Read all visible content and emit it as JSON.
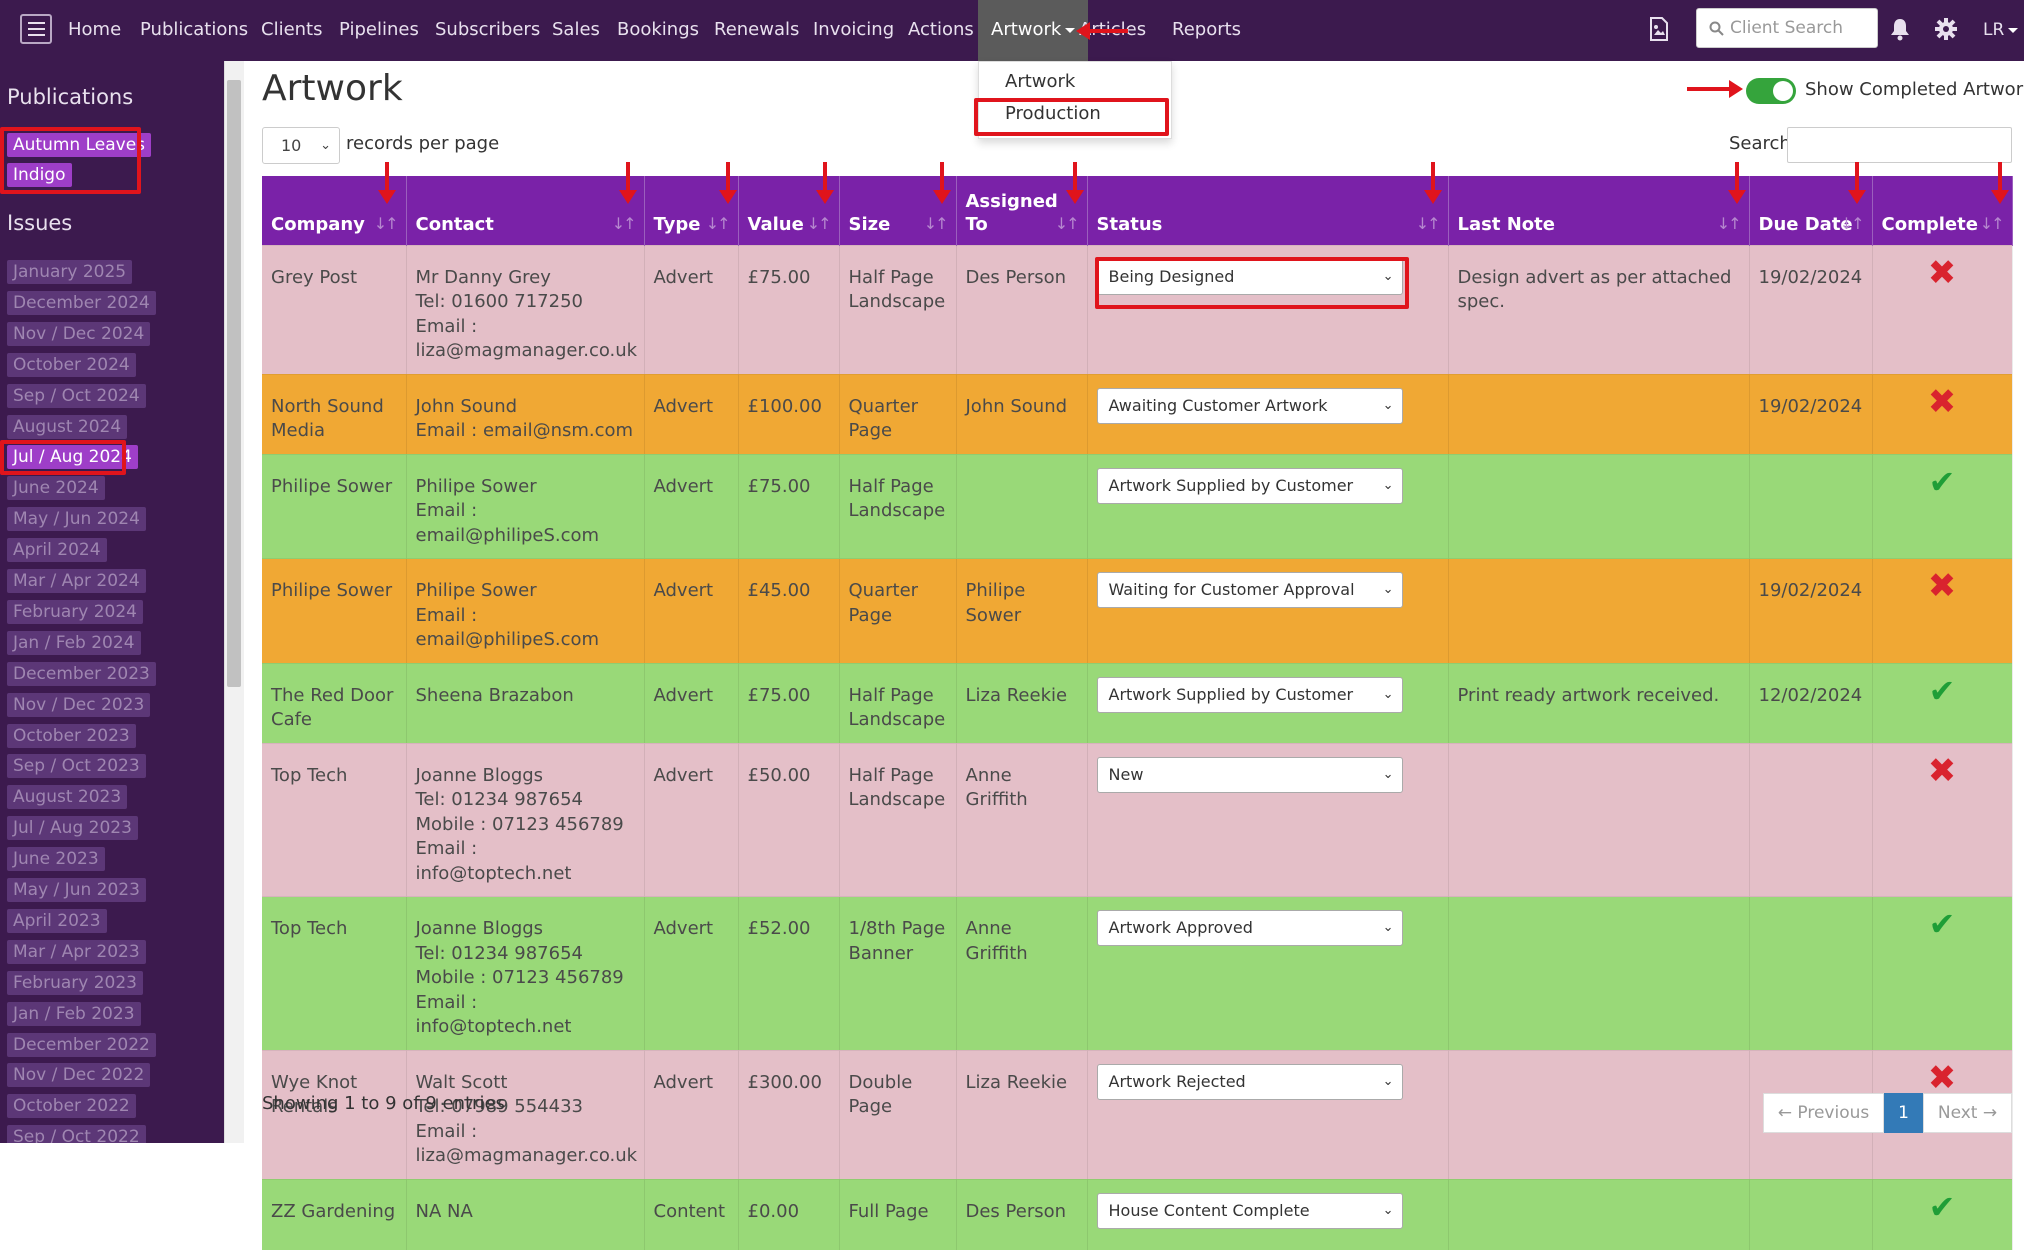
{
  "nav": {
    "items": [
      "Home",
      "Publications",
      "Clients",
      "Pipelines",
      "Subscribers",
      "Sales",
      "Bookings",
      "Renewals",
      "Invoicing",
      "Actions"
    ],
    "active_item": "Artwork",
    "after_items": [
      "Articles",
      "Reports"
    ],
    "search_placeholder": "Client Search",
    "user": "LR",
    "icons": [
      "menu-icon",
      "image-report-icon",
      "search-icon",
      "bell-icon",
      "gear-icon"
    ]
  },
  "dropdown": {
    "items": [
      "Artwork",
      "Production"
    ]
  },
  "sidebar": {
    "publications_heading": "Publications",
    "publications": [
      "Autumn Leaves",
      "Indigo"
    ],
    "issues_heading": "Issues",
    "issues": [
      "January 2025",
      "December 2024",
      "Nov / Dec 2024",
      "October 2024",
      "Sep / Oct 2024",
      "August 2024",
      "Jul / Aug 2024",
      "June 2024",
      "May / Jun 2024",
      "April 2024",
      "Mar / Apr 2024",
      "February 2024",
      "Jan / Feb 2024",
      "December 2023",
      "Nov / Dec 2023",
      "October 2023",
      "Sep / Oct 2023",
      "August 2023",
      "Jul / Aug 2023",
      "June 2023",
      "May / Jun 2023",
      "April 2023",
      "Mar / Apr 2023",
      "February 2023",
      "Jan / Feb 2023",
      "December 2022",
      "Nov / Dec 2022",
      "October 2022",
      "Sep / Oct 2022"
    ],
    "selected_issue": "Jul / Aug 2024"
  },
  "main": {
    "title": "Artwork",
    "toggle_label": "Show Completed Artwork",
    "toggle_on": true,
    "page_length": "10",
    "page_length_label": "records per page",
    "search_label": "Search:",
    "search_value": "",
    "columns": [
      "Company",
      "Contact",
      "Type",
      "Value",
      "Size",
      "Assigned To",
      "Status",
      "Last Note",
      "Due Date",
      "Complete"
    ],
    "rows": [
      {
        "company": "Grey Post",
        "contact": [
          "Mr Danny Grey",
          "Tel: 01600 717250",
          "Email :",
          "liza@magmanager.co.uk"
        ],
        "type": "Advert",
        "value": "£75.00",
        "size": "Half Page Landscape",
        "assigned": "Des Person",
        "status": "Being Designed",
        "note": "Design advert as per attached spec.",
        "due": "19/02/2024",
        "complete": false,
        "color": "pink"
      },
      {
        "company": "North Sound Media",
        "contact": [
          "John Sound",
          "Email : email@nsm.com"
        ],
        "type": "Advert",
        "value": "£100.00",
        "size": "Quarter Page",
        "assigned": "John Sound",
        "status": "Awaiting Customer Artwork",
        "note": "",
        "due": "19/02/2024",
        "complete": false,
        "color": "orange"
      },
      {
        "company": "Philipe Sower",
        "contact": [
          "Philipe Sower",
          "Email : email@philipeS.com"
        ],
        "type": "Advert",
        "value": "£75.00",
        "size": "Half Page Landscape",
        "assigned": "",
        "status": "Artwork Supplied by Customer",
        "note": "",
        "due": "",
        "complete": true,
        "color": "green"
      },
      {
        "company": "Philipe Sower",
        "contact": [
          "Philipe Sower",
          "Email : email@philipeS.com"
        ],
        "type": "Advert",
        "value": "£45.00",
        "size": "Quarter Page",
        "assigned": "Philipe Sower",
        "status": "Waiting for Customer Approval",
        "note": "",
        "due": "19/02/2024",
        "complete": false,
        "color": "orange"
      },
      {
        "company": "The Red Door Cafe",
        "contact": [
          "Sheena Brazabon"
        ],
        "type": "Advert",
        "value": "£75.00",
        "size": "Half Page Landscape",
        "assigned": "Liza Reekie",
        "status": "Artwork Supplied by Customer",
        "note": "Print ready artwork received.",
        "due": "12/02/2024",
        "complete": true,
        "color": "green"
      },
      {
        "company": "Top Tech",
        "contact": [
          "Joanne Bloggs",
          "Tel: 01234 987654",
          "Mobile : 07123 456789",
          "Email : info@toptech.net"
        ],
        "type": "Advert",
        "value": "£50.00",
        "size": "Half Page Landscape",
        "assigned": "Anne Griffith",
        "status": "New",
        "note": "",
        "due": "",
        "complete": false,
        "color": "pink"
      },
      {
        "company": "Top Tech",
        "contact": [
          "Joanne Bloggs",
          "Tel: 01234 987654",
          "Mobile : 07123 456789",
          "Email : info@toptech.net"
        ],
        "type": "Advert",
        "value": "£52.00",
        "size": "1/8th Page Banner",
        "assigned": "Anne Griffith",
        "status": "Artwork Approved",
        "note": "",
        "due": "",
        "complete": true,
        "color": "green"
      },
      {
        "company": "Wye Knot Rentals",
        "contact": [
          "Walt Scott",
          "Tel: 07989 554433",
          "Email :",
          "liza@magmanager.co.uk"
        ],
        "type": "Advert",
        "value": "£300.00",
        "size": "Double Page",
        "assigned": "Liza Reekie",
        "status": "Artwork Rejected",
        "note": "",
        "due": "",
        "complete": false,
        "color": "pink"
      },
      {
        "company": "ZZ Gardening",
        "contact": [
          "NA NA"
        ],
        "type": "Content",
        "value": "£0.00",
        "size": "Full Page",
        "assigned": "Des Person",
        "status": "House Content Complete",
        "note": "",
        "due": "",
        "complete": true,
        "color": "green"
      }
    ],
    "footer_info": "Showing 1 to 9 of 9 entries",
    "pager": {
      "previous": "← Previous",
      "current": "1",
      "next": "Next →"
    }
  },
  "colors": {
    "nav_bg": "#3c1a4e",
    "header_bg": "#7a22a8",
    "row_pink": "#e4bfc8",
    "row_orange": "#f0a834",
    "row_green": "#99d978",
    "annotation_red": "#e0141c",
    "toggle_green": "#35a43c"
  }
}
